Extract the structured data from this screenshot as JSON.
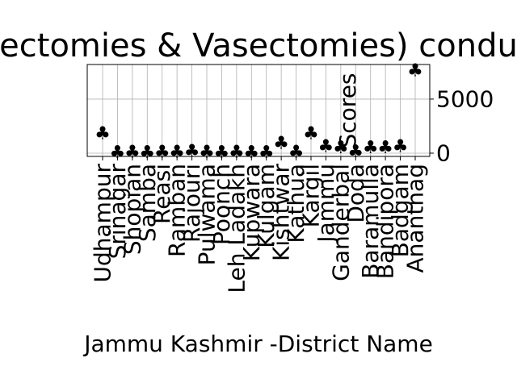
{
  "chart_data": {
    "type": "scatter",
    "title": "ectomies & Vasectomies) condu",
    "xlabel": "Jammu Kashmir -District Name",
    "ylabel": "Scores",
    "categories": [
      "Udhampur",
      "Srinagar",
      "Shopian",
      "Samba",
      "Reasi",
      "Ramban",
      "Rajouri",
      "Pulwama",
      "Poonch",
      "Leh Ladakh",
      "Kupwara",
      "Kulgam",
      "Kishtwar",
      "Kathua",
      "Kargil",
      "Jammu",
      "Ganderbal",
      "Doda",
      "Baramulla",
      "Bandipora",
      "Badgam",
      "Anantnag"
    ],
    "values": [
      1800,
      30,
      60,
      20,
      60,
      80,
      130,
      60,
      20,
      80,
      30,
      20,
      900,
      60,
      1800,
      600,
      500,
      100,
      500,
      500,
      600,
      7600
    ],
    "ylim": [
      -300,
      8200
    ],
    "yticks": [
      0,
      5000
    ],
    "ytick_labels": [
      "0",
      "5000"
    ],
    "grid": true,
    "marker": "club",
    "marker_color": "#ff0000"
  }
}
